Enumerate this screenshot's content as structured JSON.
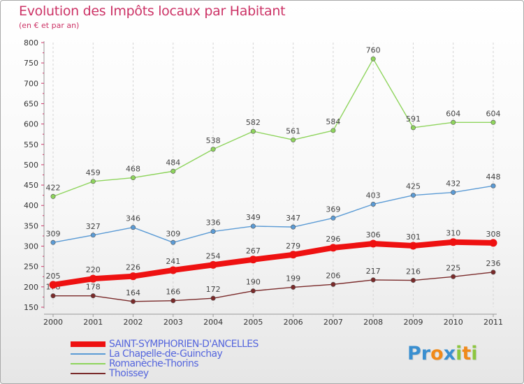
{
  "title": "Evolution des Impôts locaux par Habitant",
  "subtitle": "(en € et par an)",
  "logo": {
    "text": "Proxiti",
    "letter_colors": [
      "#3a8fd0",
      "#3a8fd0",
      "#f08a1a",
      "#3a8fd0",
      "#8cc63f",
      "#f08a1a",
      "#8cc63f"
    ]
  },
  "chart_data": {
    "type": "line",
    "x": [
      "2000",
      "2001",
      "2002",
      "2003",
      "2004",
      "2005",
      "2006",
      "2007",
      "2008",
      "2009",
      "2010",
      "2011"
    ],
    "ylim": [
      150,
      800
    ],
    "yticks": [
      150,
      200,
      250,
      300,
      350,
      400,
      450,
      500,
      550,
      600,
      650,
      700,
      750,
      800
    ],
    "grid": "vertical dashed",
    "legend_position": "bottom-left",
    "series": [
      {
        "name": "SAINT-SYMPHORIEN-D'ANCELLES",
        "color": "#ee1111",
        "emphasis": true,
        "values": [
          205,
          220,
          226,
          241,
          254,
          267,
          279,
          296,
          306,
          301,
          310,
          308
        ]
      },
      {
        "name": "La Chapelle-de-Guinchay",
        "color": "#5b9bd5",
        "values": [
          309,
          327,
          346,
          309,
          336,
          349,
          347,
          369,
          403,
          425,
          432,
          448
        ]
      },
      {
        "name": "Romanèche-Thorins",
        "color": "#8ed45c",
        "values": [
          422,
          459,
          468,
          484,
          538,
          582,
          561,
          584,
          760,
          591,
          604,
          604
        ]
      },
      {
        "name": "Thoissey",
        "color": "#7a2a2a",
        "values": [
          178,
          178,
          164,
          166,
          172,
          190,
          199,
          206,
          217,
          216,
          225,
          236
        ]
      }
    ]
  }
}
